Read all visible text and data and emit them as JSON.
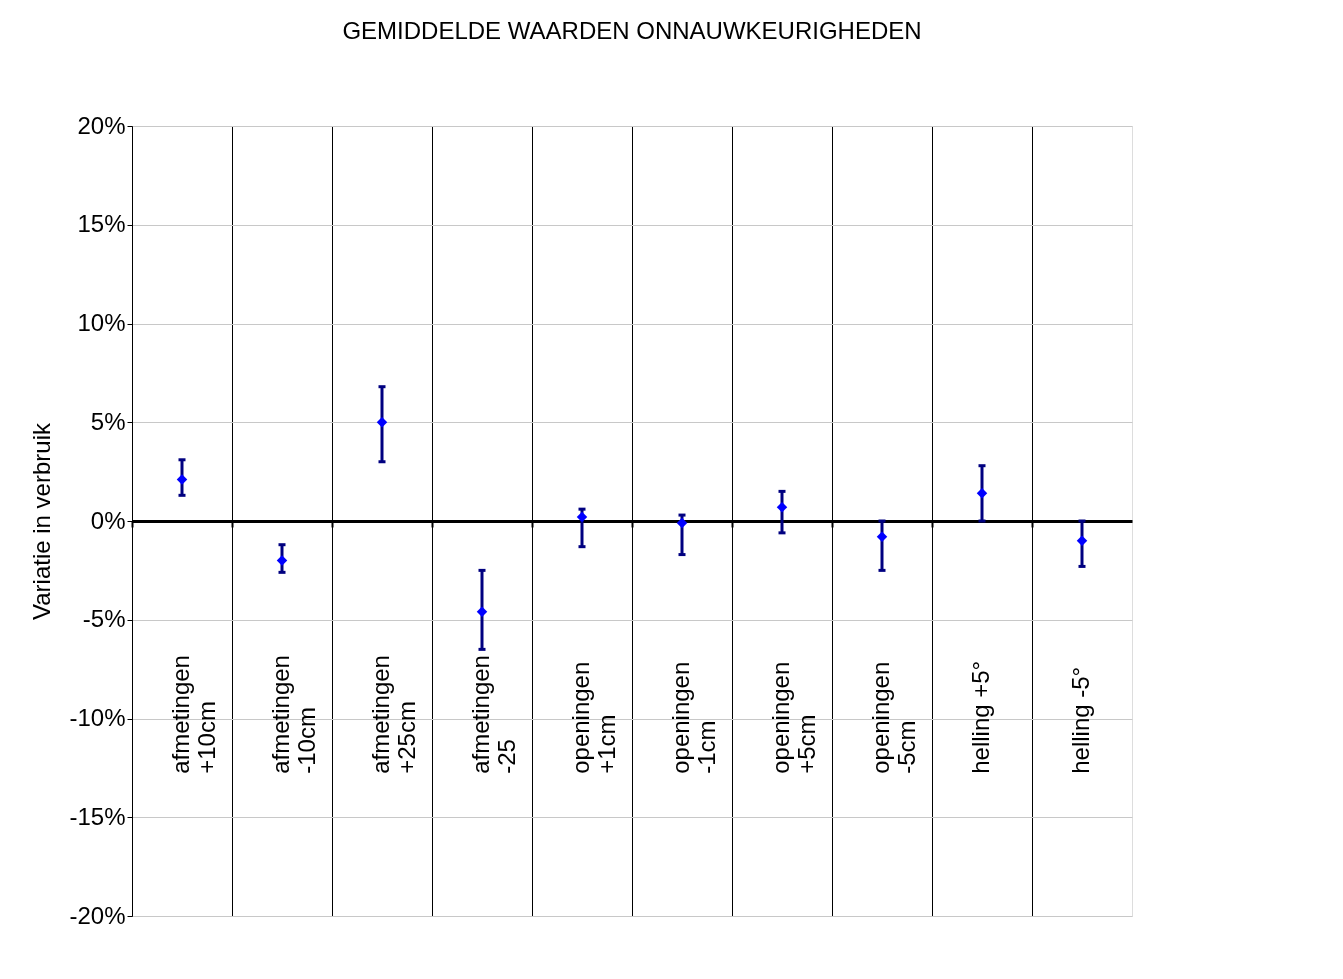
{
  "chart_data": {
    "type": "scatter",
    "title": "GEMIDDELDE WAARDEN ONNAUWKEURIGHEDEN",
    "ylabel": "Variatie in verbruik",
    "categories": [
      "afmetingen\n+10cm",
      "afmetingen\n-10cm",
      "afmetingen\n+25cm",
      "afmetingen\n-25",
      "openingen\n+1cm",
      "openingen\n-1cm",
      "openingen\n+5cm",
      "openingen\n-5cm",
      "helling +5°",
      "helling -5°"
    ],
    "series": [
      {
        "color": "#0000ff",
        "values": [
          2.1,
          -2.0,
          5.0,
          -4.6,
          0.2,
          -0.1,
          0.7,
          -0.8,
          1.4,
          -1.0
        ],
        "errors": [
          [
            1.3,
            3.1
          ],
          [
            -2.6,
            -1.2
          ],
          [
            3.0,
            6.8
          ],
          [
            -6.5,
            -2.5
          ],
          [
            -1.3,
            0.6
          ],
          [
            -1.7,
            0.3
          ],
          [
            -0.6,
            1.5
          ],
          [
            -2.5,
            0.0
          ],
          [
            0.0,
            2.8
          ],
          [
            -2.3,
            0.0
          ]
        ]
      }
    ],
    "ylim": [
      -20,
      20
    ],
    "yticks": [
      {
        "value": -20,
        "label": "-20%"
      },
      {
        "value": -15,
        "label": "-15%"
      },
      {
        "value": -10,
        "label": "-10%"
      },
      {
        "value": -5,
        "label": "-5%"
      },
      {
        "value": 0,
        "label": "0%"
      },
      {
        "value": 5,
        "label": "5%"
      },
      {
        "value": 10,
        "label": "10%"
      },
      {
        "value": 15,
        "label": "15%"
      },
      {
        "value": 20,
        "label": "20%"
      }
    ],
    "grid": true,
    "marker": "diamond"
  }
}
